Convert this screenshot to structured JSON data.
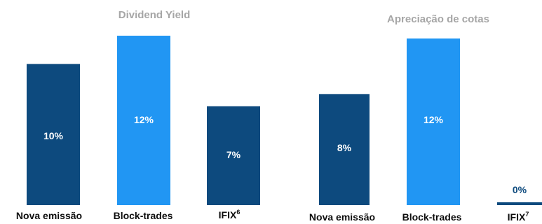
{
  "colors": {
    "dark": "#0d4a7e",
    "light": "#2196f3",
    "title": "#a6a6a6",
    "category": "#0d0d0d",
    "label_on_bar": "#ffffff",
    "label_above": "#0d4a7e"
  },
  "chart_data": [
    {
      "type": "bar",
      "title": "Dividend Yield",
      "categories": [
        "Nova emissão",
        "Block-trades",
        "IFIX"
      ],
      "category_superscripts": [
        "",
        "",
        "6"
      ],
      "values": [
        10,
        12,
        7
      ],
      "value_labels": [
        "10%",
        "12%",
        "7%"
      ],
      "bar_colors": [
        "dark",
        "light",
        "dark"
      ],
      "ylim": [
        0,
        12
      ],
      "grid": false,
      "legend": "none"
    },
    {
      "type": "bar",
      "title": "Apreciação de cotas",
      "categories": [
        "Nova emissão",
        "Block-trades",
        "IFIX"
      ],
      "category_superscripts": [
        "",
        "",
        "7"
      ],
      "values": [
        8,
        12,
        0
      ],
      "value_labels": [
        "8%",
        "12%",
        "0%"
      ],
      "bar_colors": [
        "dark",
        "light",
        "dark"
      ],
      "ylim": [
        0,
        12
      ],
      "grid": false,
      "legend": "none"
    }
  ]
}
